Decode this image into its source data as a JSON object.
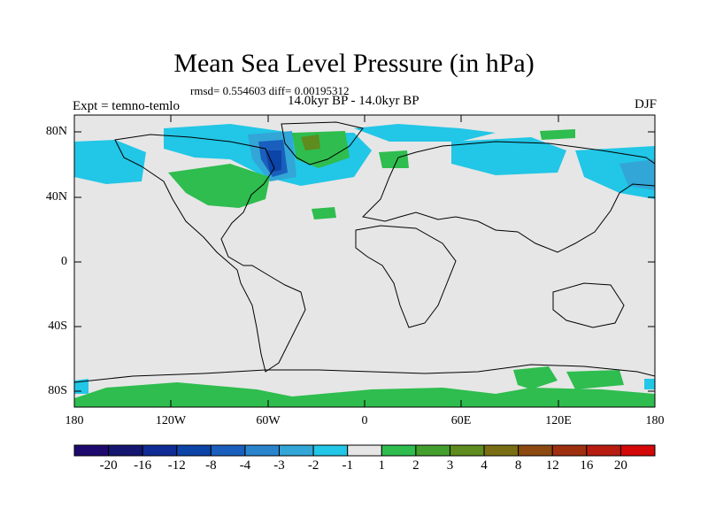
{
  "title": "Mean Sea Level Pressure (in hPa)",
  "stats": "rmsd= 0.554603 diff= 0.00195312",
  "experiment": "Expt = temno-temlo",
  "period": "14.0kyr BP - 14.0kyr BP",
  "season": "DJF",
  "lat_labels": [
    "80N",
    "40N",
    "0",
    "40S",
    "80S"
  ],
  "lon_labels": [
    "180",
    "120W",
    "60W",
    "0",
    "60E",
    "120E",
    "180"
  ],
  "colorbar": {
    "colors": [
      "#1e0a6e",
      "#14166f",
      "#0f2c96",
      "#0c44a8",
      "#1a5fbd",
      "#2a84cc",
      "#32a6d6",
      "#22c6e6",
      "#e6e6e6",
      "#2ebd4e",
      "#44a02e",
      "#5e8c1e",
      "#7a6e14",
      "#8c4a10",
      "#9e3010",
      "#b81c10",
      "#d40808"
    ],
    "labels": [
      "-20",
      "-16",
      "-12",
      "-8",
      "-4",
      "-3",
      "-2",
      "-1",
      "1",
      "2",
      "3",
      "4",
      "8",
      "12",
      "16",
      "20"
    ]
  }
}
